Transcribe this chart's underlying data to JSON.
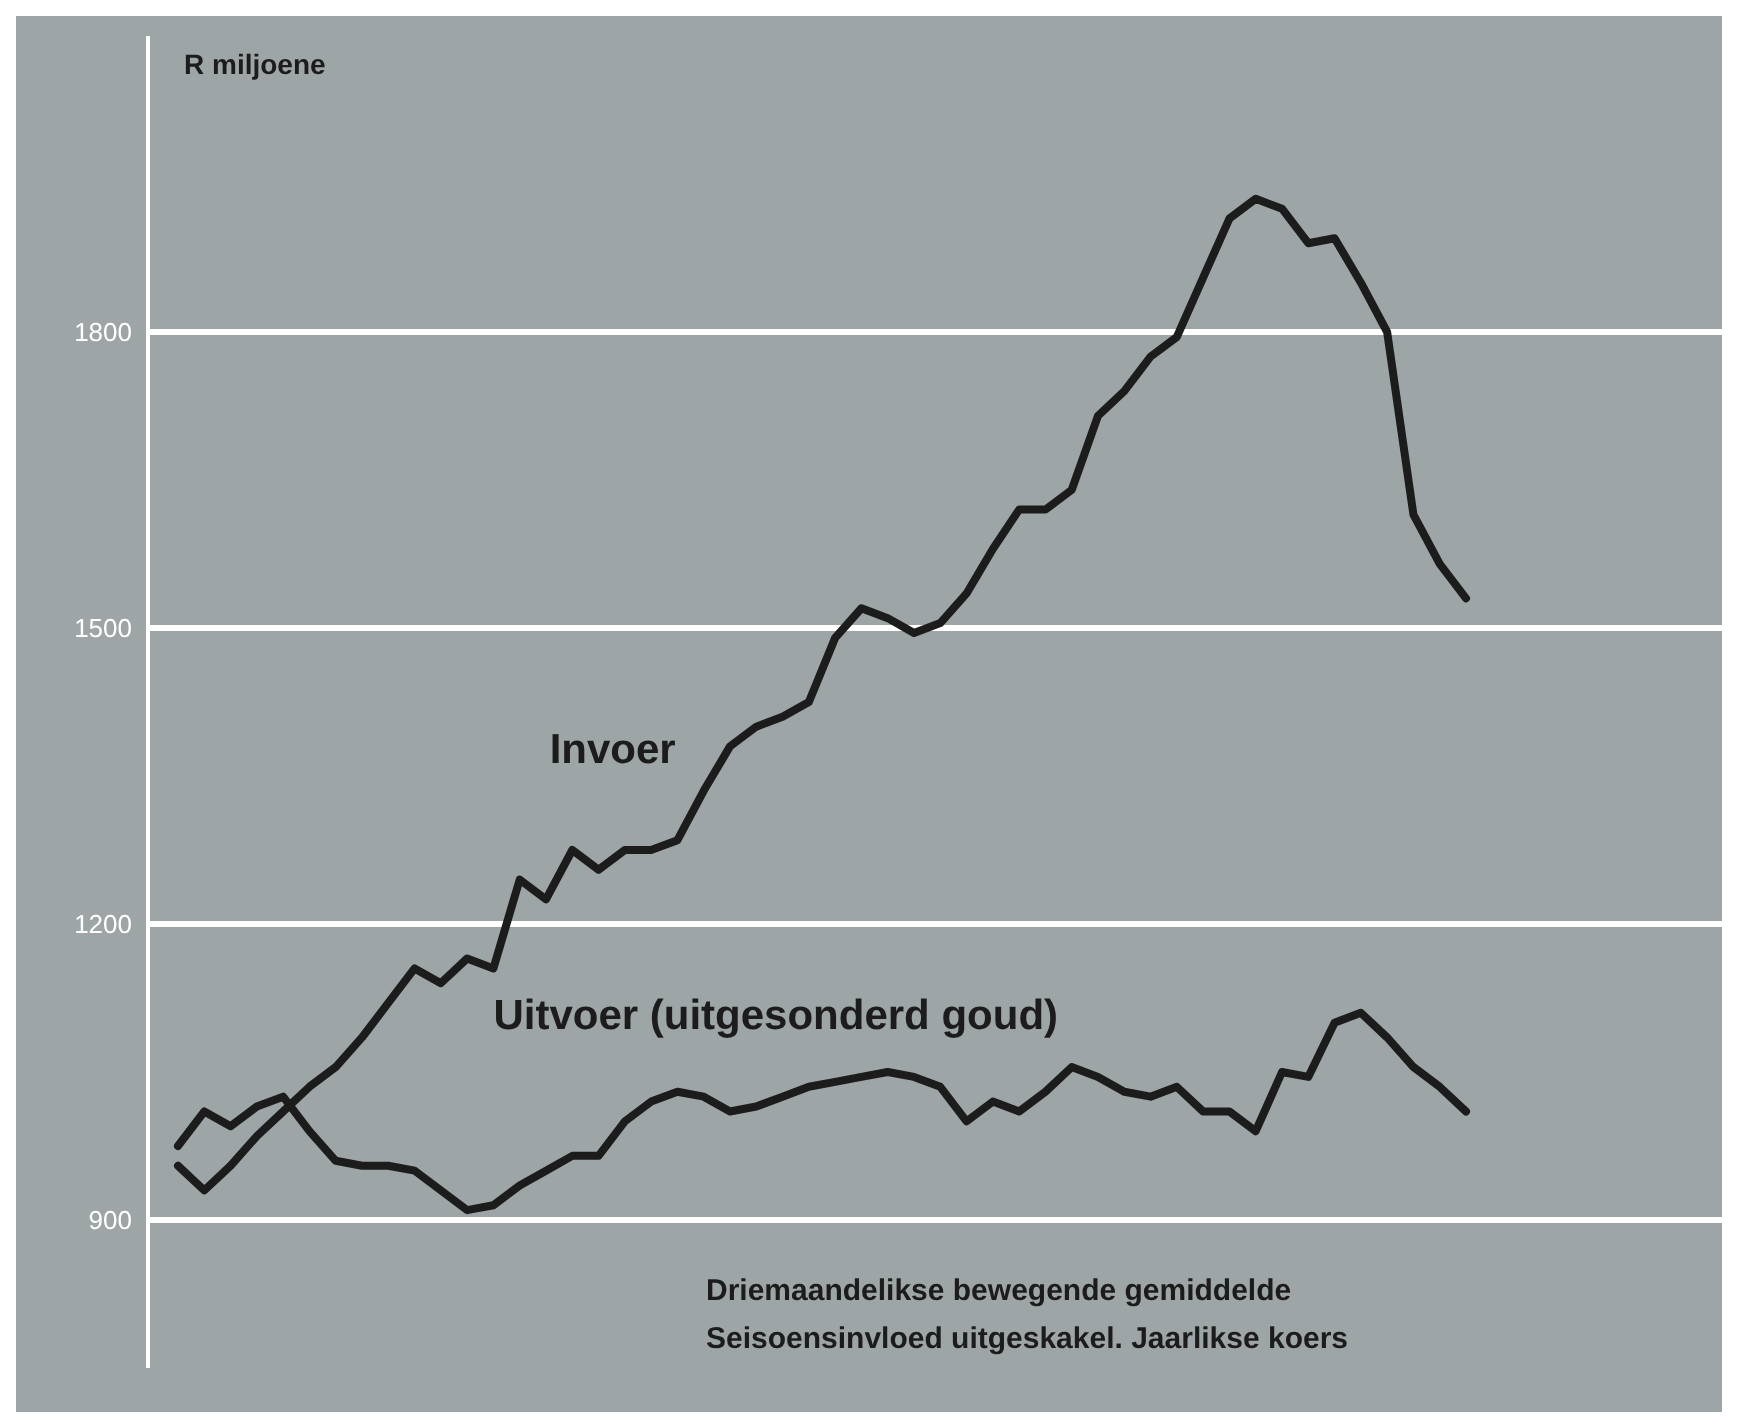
{
  "chart_data": {
    "type": "line",
    "ylabel": "R miljoene",
    "categories": [
      null,
      null,
      null,
      null,
      null,
      null,
      null,
      null,
      null,
      null,
      null,
      null,
      null,
      null,
      null,
      null,
      null,
      null,
      null,
      null,
      null,
      null,
      null,
      null,
      null,
      null,
      null,
      null,
      null,
      null,
      null,
      null,
      null,
      null,
      null,
      null,
      null,
      null,
      null,
      null,
      null,
      null,
      null,
      null,
      null,
      null,
      null,
      null,
      null,
      null
    ],
    "series": [
      {
        "name": "Invoer",
        "color": "#1c1c1c",
        "values": [
          955,
          930,
          955,
          985,
          1010,
          1035,
          1055,
          1085,
          1120,
          1155,
          1140,
          1165,
          1155,
          1245,
          1225,
          1275,
          1255,
          1275,
          1275,
          1285,
          1335,
          1380,
          1400,
          1410,
          1425,
          1490,
          1520,
          1510,
          1495,
          1505,
          1535,
          1580,
          1620,
          1620,
          1640,
          1715,
          1740,
          1775,
          1795,
          1855,
          1915,
          1935,
          1925,
          1890,
          1895,
          1850,
          1800,
          1615,
          1565,
          1530
        ]
      },
      {
        "name": "Uitvoer (uitgesonderd goud)",
        "color": "#1c1c1c",
        "values": [
          975,
          1010,
          995,
          1015,
          1025,
          990,
          960,
          955,
          955,
          950,
          930,
          910,
          915,
          935,
          950,
          965,
          965,
          1000,
          1020,
          1030,
          1025,
          1010,
          1015,
          1025,
          1035,
          1040,
          1045,
          1050,
          1045,
          1035,
          1000,
          1020,
          1010,
          1030,
          1055,
          1045,
          1030,
          1025,
          1035,
          1010,
          1010,
          990,
          1050,
          1045,
          1100,
          1110,
          1085,
          1055,
          1035,
          1010
        ]
      }
    ],
    "ylim": [
      750,
      2100
    ],
    "yticks": [
      900,
      1200,
      1500,
      1800
    ],
    "grid": "y",
    "legend": false,
    "marker": "none",
    "line_style": "solid",
    "tick_labels": "y",
    "annotations": [
      "Driemaandelikse bewegende gemiddelde",
      "Seisoensinvloed uitgeskakel. Jaarlikse koers"
    ]
  }
}
